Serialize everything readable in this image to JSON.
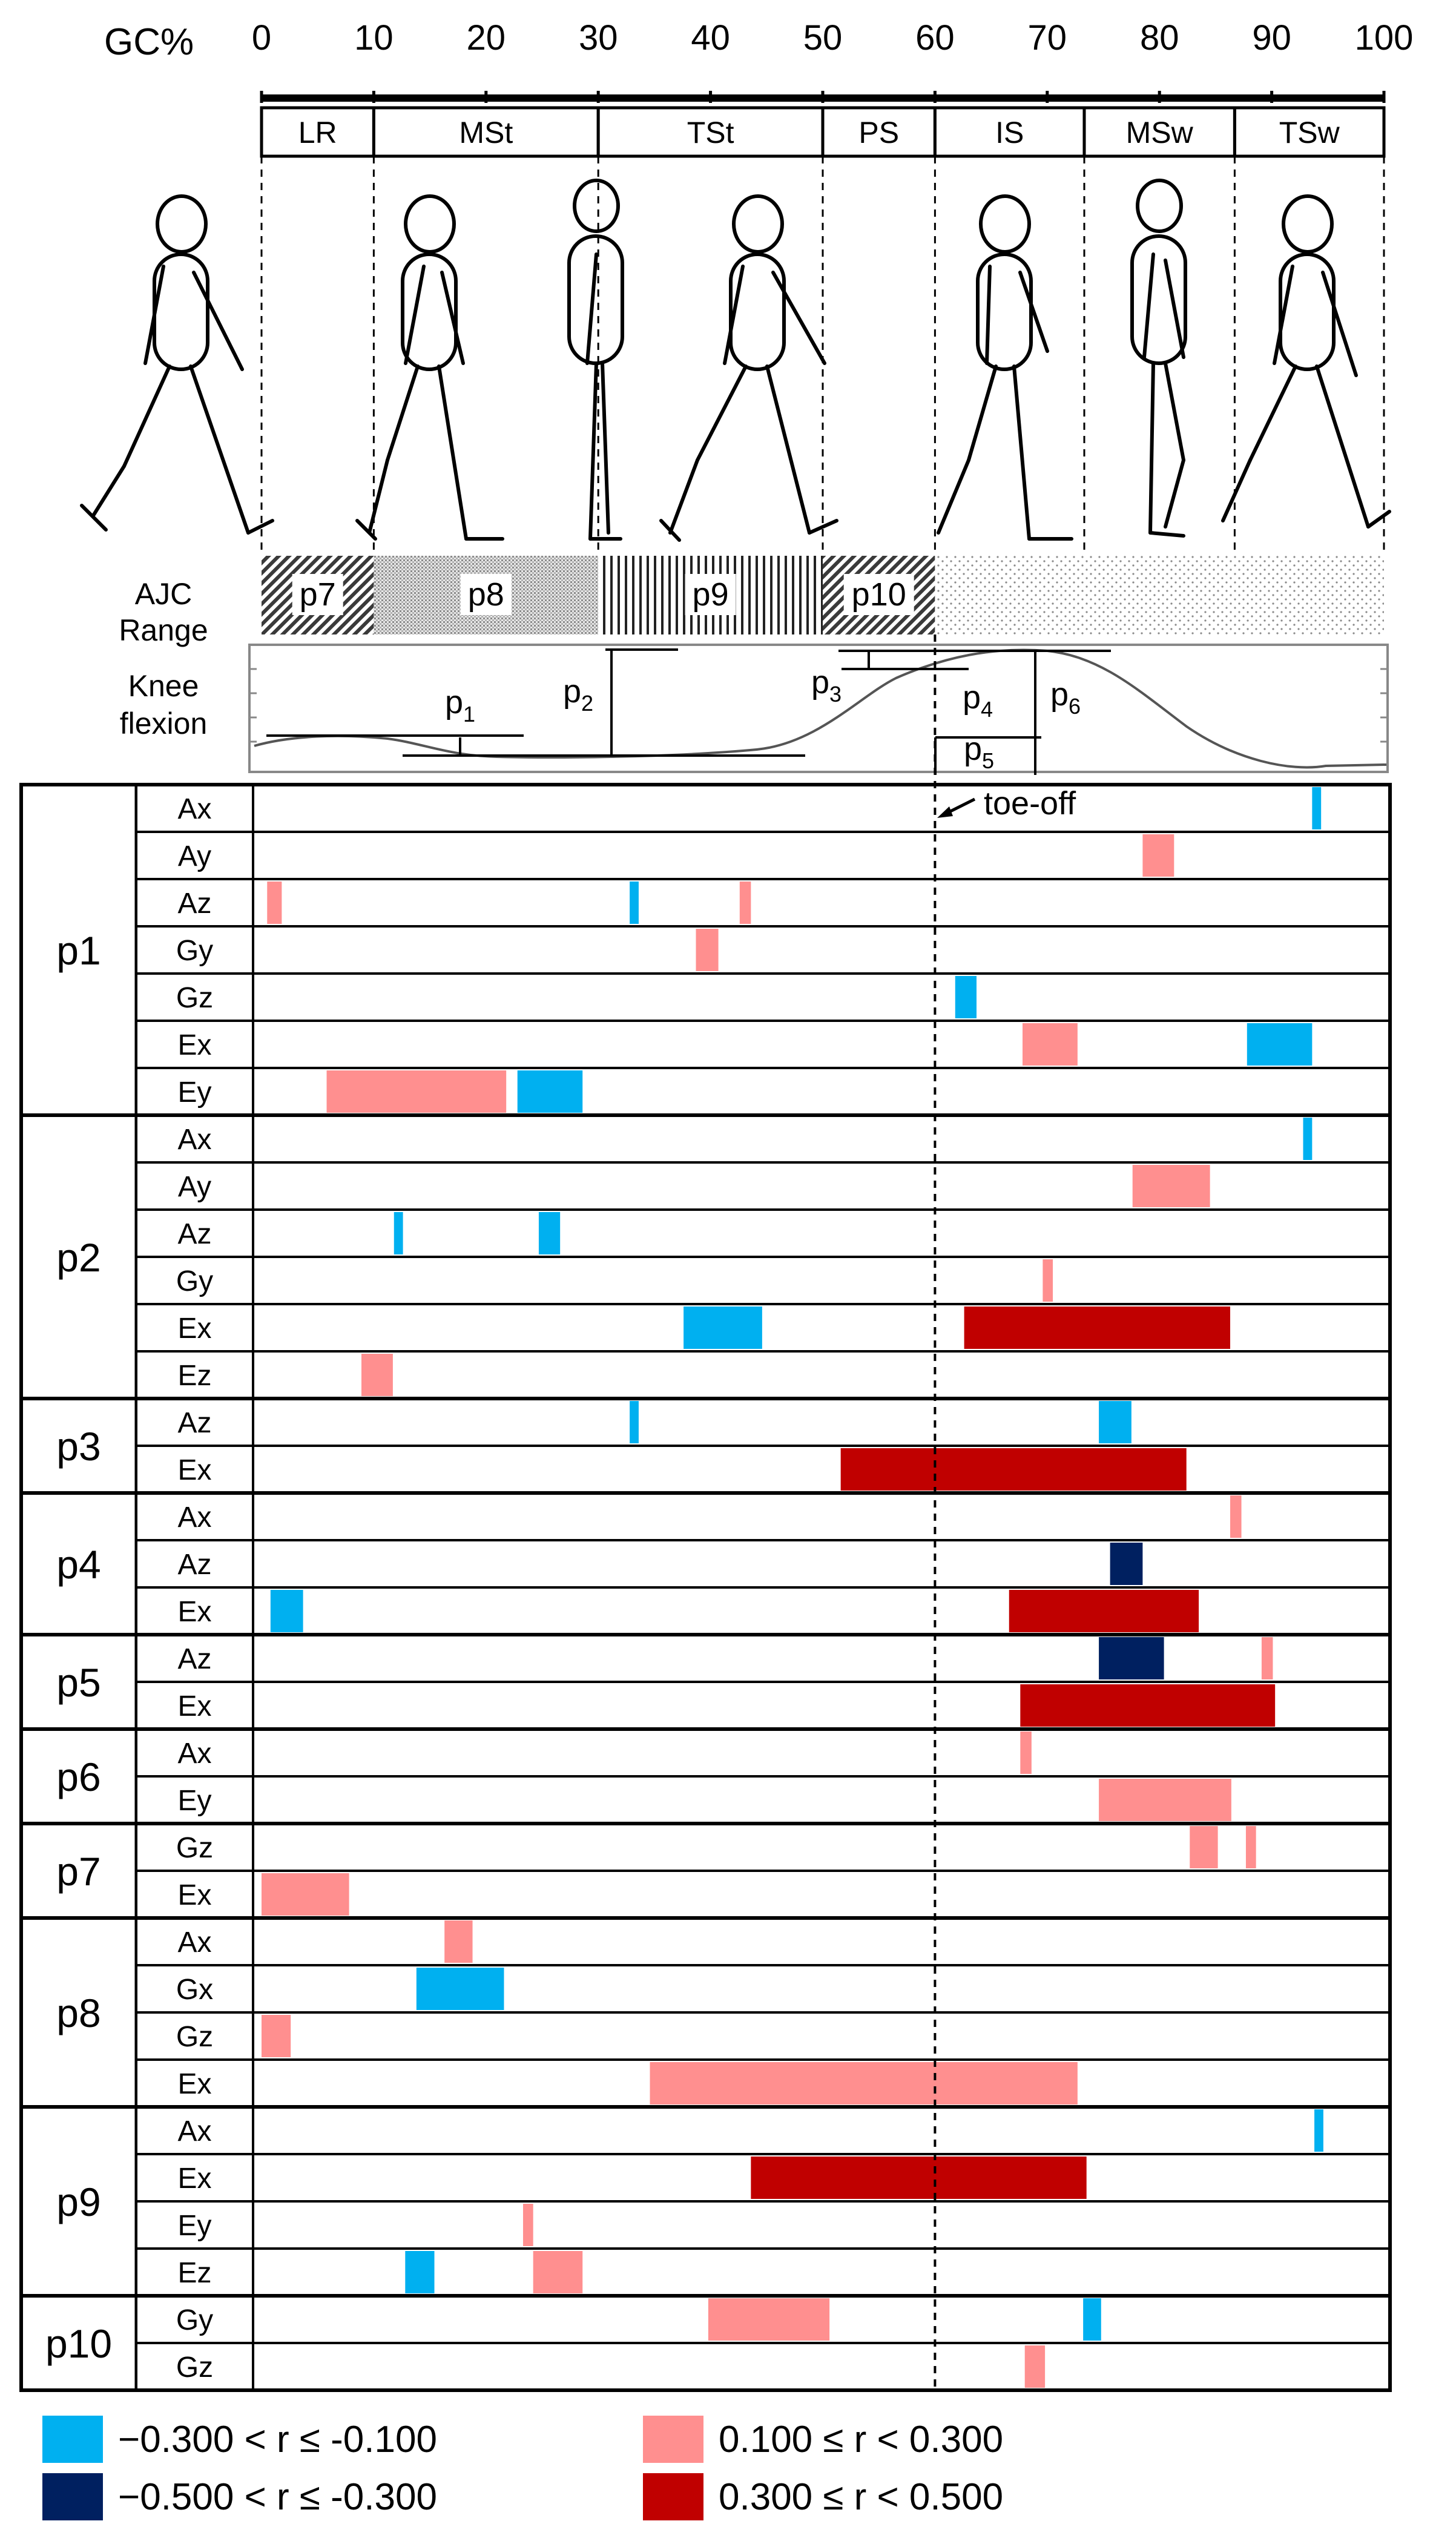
{
  "gc_axis": {
    "label": "GC%",
    "ticks": [
      "0",
      "10",
      "20",
      "30",
      "40",
      "50",
      "60",
      "70",
      "80",
      "90",
      "100"
    ]
  },
  "phases": [
    {
      "label": "LR",
      "start": 0,
      "end": 10
    },
    {
      "label": "MSt",
      "start": 10,
      "end": 30
    },
    {
      "label": "TSt",
      "start": 30,
      "end": 50
    },
    {
      "label": "PS",
      "start": 50,
      "end": 60
    },
    {
      "label": "IS",
      "start": 60,
      "end": 73.3
    },
    {
      "label": "MSw",
      "start": 73.3,
      "end": 86.7
    },
    {
      "label": "TSw",
      "start": 86.7,
      "end": 100
    }
  ],
  "ajc": {
    "label_line1": "AJC",
    "label_line2": "Range",
    "bands": [
      {
        "label": "p7",
        "start": 0,
        "end": 10,
        "pattern": "diag"
      },
      {
        "label": "p8",
        "start": 10,
        "end": 30,
        "pattern": "fine"
      },
      {
        "label": "p9",
        "start": 30,
        "end": 50,
        "pattern": "vert"
      },
      {
        "label": "p10",
        "start": 50,
        "end": 60,
        "pattern": "diag"
      },
      {
        "label": "",
        "start": 60,
        "end": 100,
        "pattern": "dots"
      }
    ]
  },
  "knee": {
    "label_line1": "Knee",
    "label_line2": "flexion",
    "params": [
      "p",
      "p",
      "p",
      "p",
      "p",
      "p"
    ],
    "subs": [
      "1",
      "2",
      "3",
      "4",
      "5",
      "6"
    ]
  },
  "toe_off": {
    "label": "toe-off",
    "gc": 60
  },
  "groups": [
    {
      "label": "p1",
      "rows": [
        {
          "label": "Ax",
          "cells": [
            {
              "start": 93.6,
              "end": 94.4,
              "level": "neg_weak"
            }
          ]
        },
        {
          "label": "Ay",
          "cells": [
            {
              "start": 78.5,
              "end": 81.3,
              "level": "pos_weak"
            }
          ]
        },
        {
          "label": "Az",
          "cells": [
            {
              "start": 0.5,
              "end": 1.8,
              "level": "pos_weak"
            },
            {
              "start": 32.8,
              "end": 33.6,
              "level": "neg_weak"
            },
            {
              "start": 42.6,
              "end": 43.6,
              "level": "pos_weak"
            }
          ]
        },
        {
          "label": "Gy",
          "cells": [
            {
              "start": 38.7,
              "end": 40.7,
              "level": "pos_weak"
            }
          ]
        },
        {
          "label": "Gz",
          "cells": [
            {
              "start": 61.8,
              "end": 63.7,
              "level": "neg_weak"
            }
          ]
        },
        {
          "label": "Ex",
          "cells": [
            {
              "start": 67.8,
              "end": 72.7,
              "level": "pos_weak"
            },
            {
              "start": 87.8,
              "end": 93.6,
              "level": "neg_weak"
            }
          ]
        },
        {
          "label": "Ey",
          "cells": [
            {
              "start": 5.8,
              "end": 21.8,
              "level": "pos_weak"
            },
            {
              "start": 22.8,
              "end": 28.6,
              "level": "neg_weak"
            }
          ]
        }
      ]
    },
    {
      "label": "p2",
      "rows": [
        {
          "label": "Ax",
          "cells": [
            {
              "start": 92.8,
              "end": 93.6,
              "level": "neg_weak"
            }
          ]
        },
        {
          "label": "Ay",
          "cells": [
            {
              "start": 77.6,
              "end": 84.5,
              "level": "pos_weak"
            }
          ]
        },
        {
          "label": "Az",
          "cells": [
            {
              "start": 11.8,
              "end": 12.6,
              "level": "neg_weak"
            },
            {
              "start": 24.7,
              "end": 26.6,
              "level": "neg_weak"
            }
          ]
        },
        {
          "label": "Gy",
          "cells": [
            {
              "start": 69.6,
              "end": 70.5,
              "level": "pos_weak"
            }
          ]
        },
        {
          "label": "Ex",
          "cells": [
            {
              "start": 37.6,
              "end": 44.6,
              "level": "neg_weak"
            },
            {
              "start": 62.6,
              "end": 86.3,
              "level": "pos_mod"
            }
          ]
        },
        {
          "label": "Ez",
          "cells": [
            {
              "start": 8.9,
              "end": 11.7,
              "level": "pos_weak"
            }
          ]
        }
      ]
    },
    {
      "label": "p3",
      "rows": [
        {
          "label": "Az",
          "cells": [
            {
              "start": 32.8,
              "end": 33.6,
              "level": "neg_weak"
            },
            {
              "start": 74.6,
              "end": 77.5,
              "level": "neg_weak"
            }
          ]
        },
        {
          "label": "Ex",
          "cells": [
            {
              "start": 51.6,
              "end": 82.4,
              "level": "pos_mod"
            }
          ]
        }
      ]
    },
    {
      "label": "p4",
      "rows": [
        {
          "label": "Ax",
          "cells": [
            {
              "start": 86.3,
              "end": 87.3,
              "level": "pos_weak"
            }
          ]
        },
        {
          "label": "Az",
          "cells": [
            {
              "start": 75.6,
              "end": 78.5,
              "level": "neg_mod"
            }
          ]
        },
        {
          "label": "Ex",
          "cells": [
            {
              "start": 0.8,
              "end": 3.7,
              "level": "neg_weak"
            },
            {
              "start": 66.6,
              "end": 83.5,
              "level": "pos_mod"
            }
          ]
        }
      ]
    },
    {
      "label": "p5",
      "rows": [
        {
          "label": "Az",
          "cells": [
            {
              "start": 74.6,
              "end": 80.4,
              "level": "neg_mod"
            },
            {
              "start": 89.1,
              "end": 90.1,
              "level": "pos_weak"
            }
          ]
        },
        {
          "label": "Ex",
          "cells": [
            {
              "start": 67.6,
              "end": 90.3,
              "level": "pos_mod"
            }
          ]
        }
      ]
    },
    {
      "label": "p6",
      "rows": [
        {
          "label": "Ax",
          "cells": [
            {
              "start": 67.6,
              "end": 68.6,
              "level": "pos_weak"
            }
          ]
        },
        {
          "label": "Ey",
          "cells": [
            {
              "start": 74.6,
              "end": 86.4,
              "level": "pos_weak"
            }
          ]
        }
      ]
    },
    {
      "label": "p7",
      "rows": [
        {
          "label": "Gz",
          "cells": [
            {
              "start": 82.7,
              "end": 85.2,
              "level": "pos_weak"
            },
            {
              "start": 87.7,
              "end": 88.6,
              "level": "pos_weak"
            }
          ]
        },
        {
          "label": "Ex",
          "cells": [
            {
              "start": 0,
              "end": 7.8,
              "level": "pos_weak"
            }
          ]
        }
      ]
    },
    {
      "label": "p8",
      "rows": [
        {
          "label": "Ax",
          "cells": [
            {
              "start": 16.3,
              "end": 18.8,
              "level": "pos_weak"
            }
          ]
        },
        {
          "label": "Gx",
          "cells": [
            {
              "start": 13.8,
              "end": 21.6,
              "level": "neg_weak"
            }
          ]
        },
        {
          "label": "Gz",
          "cells": [
            {
              "start": 0,
              "end": 2.6,
              "level": "pos_weak"
            }
          ]
        },
        {
          "label": "Ex",
          "cells": [
            {
              "start": 34.6,
              "end": 72.7,
              "level": "pos_weak"
            }
          ]
        }
      ]
    },
    {
      "label": "p9",
      "rows": [
        {
          "label": "Ax",
          "cells": [
            {
              "start": 93.8,
              "end": 94.6,
              "level": "neg_weak"
            }
          ]
        },
        {
          "label": "Ex",
          "cells": [
            {
              "start": 43.6,
              "end": 73.5,
              "level": "pos_mod"
            }
          ]
        },
        {
          "label": "Ey",
          "cells": [
            {
              "start": 23.3,
              "end": 24.2,
              "level": "pos_weak"
            }
          ]
        },
        {
          "label": "Ez",
          "cells": [
            {
              "start": 12.8,
              "end": 15.4,
              "level": "neg_weak"
            },
            {
              "start": 24.2,
              "end": 28.6,
              "level": "pos_weak"
            }
          ]
        }
      ]
    },
    {
      "label": "p10",
      "rows": [
        {
          "label": "Gy",
          "cells": [
            {
              "start": 39.8,
              "end": 50.6,
              "level": "pos_weak"
            },
            {
              "start": 73.2,
              "end": 74.8,
              "level": "neg_weak"
            }
          ]
        },
        {
          "label": "Gz",
          "cells": [
            {
              "start": 68.0,
              "end": 69.8,
              "level": "pos_weak"
            }
          ]
        }
      ]
    }
  ],
  "legend": [
    {
      "level": "neg_weak",
      "color": "#00b0f0",
      "text": "−0.300 < r ≤ -0.100"
    },
    {
      "level": "neg_mod",
      "color": "#002060",
      "text": "−0.500 < r ≤ -0.300"
    },
    {
      "level": "pos_weak",
      "color": "#ff8f8f",
      "text": "0.100 ≤ r < 0.300"
    },
    {
      "level": "pos_mod",
      "color": "#c00000",
      "text": "0.300 ≤ r < 0.500"
    }
  ]
}
